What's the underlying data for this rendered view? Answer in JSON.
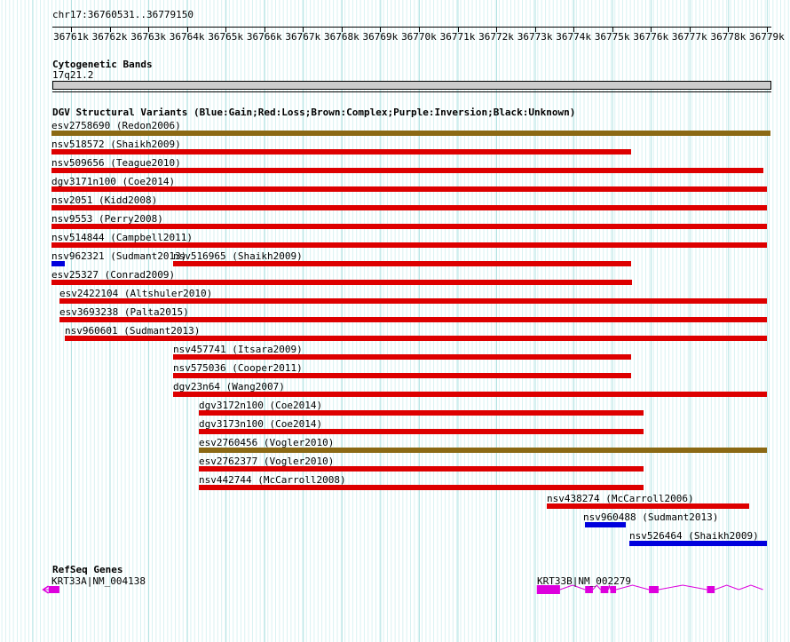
{
  "header": {
    "region_label": "chr17:36760531..36779150"
  },
  "sections": {
    "cytobands_title": "Cytogenetic Bands",
    "cytoband_name": "17q21.2",
    "dgv_title": "DGV Structural Variants (Blue:Gain;Red:Loss;Brown:Complex;Purple:Inversion;Black:Unknown)",
    "refseq_title": "RefSeq Genes"
  },
  "colors": {
    "gain": "#0000dd",
    "loss": "#dd0000",
    "complex": "#8b6914",
    "inversion": "#800080",
    "unknown": "#000000",
    "gene": "#dd00dd",
    "band_fill": "#cccccc"
  },
  "chart_data": {
    "type": "bar",
    "orientation": "horizontal-ranges",
    "title": "DGV Structural Variants (Blue:Gain;Red:Loss;Brown:Complex;Purple:Inversion;Black:Unknown)",
    "region": "chr17:36760531..36779150",
    "legend": {
      "Blue": "Gain",
      "Red": "Loss",
      "Brown": "Complex",
      "Purple": "Inversion",
      "Black": "Unknown"
    },
    "x_axis": {
      "unit": "chr17 position (kb)",
      "range_kb": [
        36760.531,
        36779.15
      ],
      "tick_interval_bp": 1000,
      "ticks": [
        "36761k",
        "36762k",
        "36763k",
        "36764k",
        "36765k",
        "36766k",
        "36767k",
        "36768k",
        "36769k",
        "36770k",
        "36771k",
        "36772k",
        "36773k",
        "36774k",
        "36775k",
        "36776k",
        "36777k",
        "36778k",
        "36779k"
      ]
    },
    "cytoband": {
      "name": "17q21.2",
      "start_kb": 36760.5,
      "end_kb": 36779.1
    },
    "variant_rows": [
      [
        {
          "label": "esv2758690 (Redon2006)",
          "class": "complex",
          "start_kb": 36760.5,
          "end_kb": 36779.1
        }
      ],
      [
        {
          "label": "nsv518572 (Shaikh2009)",
          "class": "loss",
          "start_kb": 36760.5,
          "end_kb": 36775.5
        }
      ],
      [
        {
          "label": "nsv509656 (Teague2010)",
          "class": "loss",
          "start_kb": 36760.5,
          "end_kb": 36778.9
        }
      ],
      [
        {
          "label": "dgv3171n100 (Coe2014)",
          "class": "loss",
          "start_kb": 36760.5,
          "end_kb": 36779.0
        }
      ],
      [
        {
          "label": "nsv2051 (Kidd2008)",
          "class": "loss",
          "start_kb": 36760.5,
          "end_kb": 36779.0
        }
      ],
      [
        {
          "label": "nsv9553 (Perry2008)",
          "class": "loss",
          "start_kb": 36760.5,
          "end_kb": 36779.0
        }
      ],
      [
        {
          "label": "nsv514844 (Campbell2011)",
          "class": "loss",
          "start_kb": 36760.5,
          "end_kb": 36779.0
        }
      ],
      [
        {
          "label": "nsv962321 (Sudmant2013)",
          "class": "gain",
          "start_kb": 36760.5,
          "end_kb": 36760.84
        },
        {
          "label": "nsv516965 (Shaikh2009)",
          "class": "loss",
          "start_kb": 36763.65,
          "end_kb": 36775.5
        }
      ],
      [
        {
          "label": "esv25327 (Conrad2009)",
          "class": "loss",
          "start_kb": 36760.5,
          "end_kb": 36775.52
        }
      ],
      [
        {
          "label": "esv2422104 (Altshuler2010)",
          "class": "loss",
          "start_kb": 36760.7,
          "end_kb": 36779.0
        }
      ],
      [
        {
          "label": "esv3693238 (Palta2015)",
          "class": "loss",
          "start_kb": 36760.7,
          "end_kb": 36779.0
        }
      ],
      [
        {
          "label": "nsv960601 (Sudmant2013)",
          "class": "loss",
          "start_kb": 36760.84,
          "end_kb": 36779.0
        }
      ],
      [
        {
          "label": "nsv457741 (Itsara2009)",
          "class": "loss",
          "start_kb": 36763.65,
          "end_kb": 36775.5
        }
      ],
      [
        {
          "label": "nsv575036 (Cooper2011)",
          "class": "loss",
          "start_kb": 36763.65,
          "end_kb": 36775.5
        }
      ],
      [
        {
          "label": "dgv23n64 (Wang2007)",
          "class": "loss",
          "start_kb": 36763.65,
          "end_kb": 36779.0
        }
      ],
      [
        {
          "label": "dgv3172n100 (Coe2014)",
          "class": "loss",
          "start_kb": 36764.3,
          "end_kb": 36775.8
        }
      ],
      [
        {
          "label": "dgv3173n100 (Coe2014)",
          "class": "loss",
          "start_kb": 36764.3,
          "end_kb": 36775.8
        }
      ],
      [
        {
          "label": "esv2760456 (Vogler2010)",
          "class": "complex",
          "start_kb": 36764.3,
          "end_kb": 36779.0
        }
      ],
      [
        {
          "label": "esv2762377 (Vogler2010)",
          "class": "loss",
          "start_kb": 36764.3,
          "end_kb": 36775.8
        }
      ],
      [
        {
          "label": "nsv442744 (McCarroll2008)",
          "class": "loss",
          "start_kb": 36764.3,
          "end_kb": 36775.8
        }
      ],
      [
        {
          "label": "nsv438274 (McCarroll2006)",
          "class": "loss",
          "start_kb": 36773.3,
          "end_kb": 36778.55
        }
      ],
      [
        {
          "label": "nsv960488 (Sudmant2013)",
          "class": "gain",
          "start_kb": 36774.3,
          "end_kb": 36775.35,
          "label_start_kb": 36774.25
        }
      ],
      [
        {
          "label": "nsv526464 (Shaikh2009)",
          "class": "gain",
          "start_kb": 36775.45,
          "end_kb": 36779.0
        }
      ]
    ],
    "genes": [
      {
        "label": "KRT33A|NM_004138",
        "label_kb": 36760.5,
        "clipped_left": true,
        "arrow_tip_kb": 36760.28,
        "exons_kb": [
          [
            36760.42,
            36760.7
          ]
        ]
      },
      {
        "label": "KRT33B|NM_002279",
        "label_kb": 36773.05,
        "exons_kb": [
          [
            36773.05,
            36773.65
          ],
          [
            36774.3,
            36774.5
          ],
          [
            36774.7,
            36774.9
          ],
          [
            36774.95,
            36775.1
          ],
          [
            36775.95,
            36776.2
          ],
          [
            36777.45,
            36777.65
          ]
        ],
        "tail_end_kb": 36778.9
      }
    ]
  }
}
